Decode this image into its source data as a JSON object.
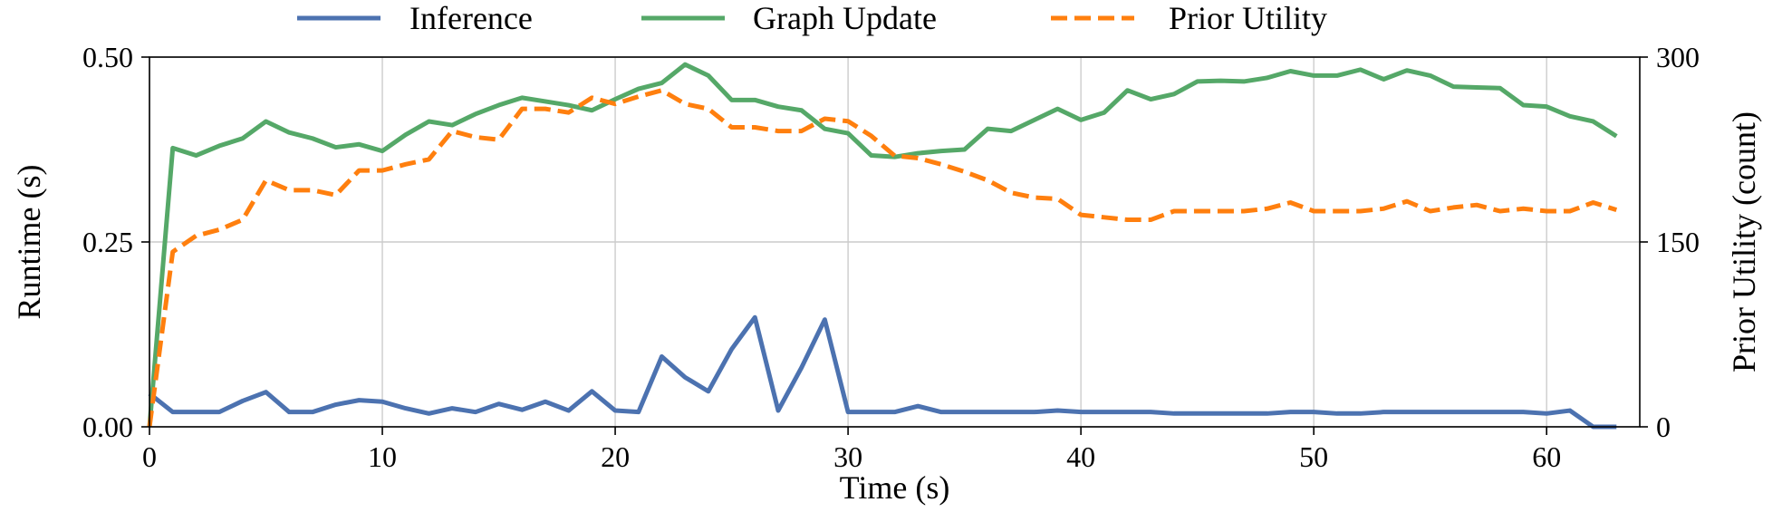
{
  "chart_data": {
    "type": "line",
    "xlabel": "Time (s)",
    "ylabel_left": "Runtime (s)",
    "ylabel_right": "Prior Utility (count)",
    "xlim": [
      0,
      64
    ],
    "ylim_left": [
      0,
      0.5
    ],
    "ylim_right": [
      0,
      300
    ],
    "x_ticks": [
      0,
      10,
      20,
      30,
      40,
      50,
      60
    ],
    "x_tick_labels": [
      "0",
      "10",
      "20",
      "30",
      "40",
      "50",
      "60"
    ],
    "y_left_ticks": [
      0,
      0.25,
      0.5
    ],
    "y_left_tick_labels": [
      "0.00",
      "0.25",
      "0.50"
    ],
    "y_right_ticks": [
      0,
      150,
      300
    ],
    "y_right_tick_labels": [
      "0",
      "150",
      "300"
    ],
    "grid": true,
    "legend_position": "top-center",
    "x": [
      0,
      1,
      2,
      3,
      4,
      5,
      6,
      7,
      8,
      9,
      10,
      11,
      12,
      13,
      14,
      15,
      16,
      17,
      18,
      19,
      20,
      21,
      22,
      23,
      24,
      25,
      26,
      27,
      28,
      29,
      30,
      31,
      32,
      33,
      34,
      35,
      36,
      37,
      38,
      39,
      40,
      41,
      42,
      43,
      44,
      45,
      46,
      47,
      48,
      49,
      50,
      51,
      52,
      53,
      54,
      55,
      56,
      57,
      58,
      59,
      60,
      61,
      62,
      63
    ],
    "series": [
      {
        "name": "Inference",
        "axis": "left",
        "color": "#4c72b0",
        "style": "solid",
        "values": [
          0.045,
          0.02,
          0.02,
          0.02,
          0.035,
          0.047,
          0.02,
          0.02,
          0.03,
          0.036,
          0.034,
          0.025,
          0.018,
          0.025,
          0.02,
          0.031,
          0.023,
          0.034,
          0.022,
          0.048,
          0.022,
          0.02,
          0.095,
          0.067,
          0.048,
          0.105,
          0.148,
          0.022,
          0.08,
          0.145,
          0.02,
          0.02,
          0.02,
          0.028,
          0.02,
          0.02,
          0.02,
          0.02,
          0.02,
          0.022,
          0.02,
          0.02,
          0.02,
          0.02,
          0.018,
          0.018,
          0.018,
          0.018,
          0.018,
          0.02,
          0.02,
          0.018,
          0.018,
          0.02,
          0.02,
          0.02,
          0.02,
          0.02,
          0.02,
          0.02,
          0.018,
          0.022,
          0.0,
          0.0
        ]
      },
      {
        "name": "Graph Update",
        "axis": "left",
        "color": "#55a868",
        "style": "solid",
        "values": [
          0.0,
          0.377,
          0.367,
          0.38,
          0.39,
          0.413,
          0.398,
          0.39,
          0.378,
          0.382,
          0.373,
          0.395,
          0.413,
          0.408,
          0.423,
          0.435,
          0.445,
          0.44,
          0.435,
          0.428,
          0.443,
          0.457,
          0.465,
          0.49,
          0.475,
          0.442,
          0.442,
          0.433,
          0.428,
          0.403,
          0.397,
          0.367,
          0.365,
          0.37,
          0.373,
          0.375,
          0.403,
          0.4,
          0.415,
          0.43,
          0.415,
          0.425,
          0.455,
          0.443,
          0.45,
          0.467,
          0.468,
          0.467,
          0.472,
          0.481,
          0.475,
          0.475,
          0.483,
          0.47,
          0.482,
          0.475,
          0.46,
          0.459,
          0.458,
          0.435,
          0.433,
          0.42,
          0.413,
          0.393
        ]
      },
      {
        "name": "Prior Utility",
        "axis": "right",
        "color": "#ff7f0e",
        "style": "dashed",
        "values": [
          0,
          142,
          155,
          160,
          168,
          200,
          192,
          192,
          188,
          208,
          208,
          213,
          217,
          240,
          235,
          233,
          258,
          258,
          255,
          267,
          262,
          268,
          273,
          262,
          258,
          243,
          243,
          240,
          240,
          250,
          248,
          236,
          220,
          218,
          213,
          207,
          200,
          190,
          186,
          185,
          172,
          170,
          168,
          168,
          175,
          175,
          175,
          175,
          177,
          182,
          175,
          175,
          175,
          177,
          183,
          175,
          178,
          180,
          175,
          177,
          175,
          175,
          182,
          176
        ]
      }
    ]
  }
}
